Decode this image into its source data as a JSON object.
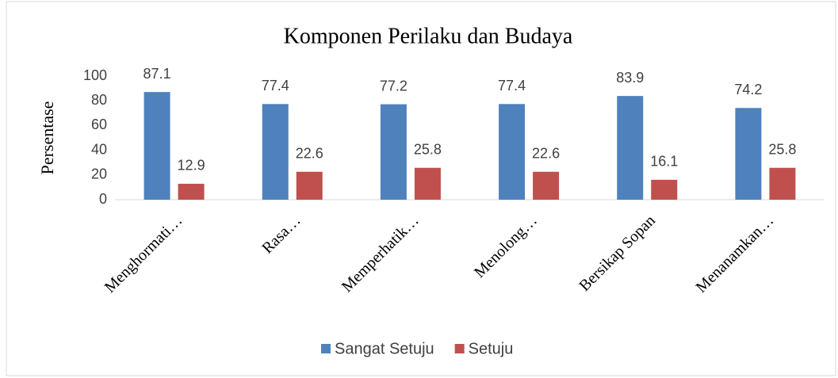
{
  "chart_data": {
    "type": "bar",
    "title": "Komponen Perilaku  dan Budaya",
    "y_label": "Persentase",
    "categories": [
      "Menghormati…",
      "Rasa…",
      "Memperhatik…",
      "Menolong…",
      "Bersikap Sopan",
      "Menanamkan…"
    ],
    "series": [
      {
        "name": "Sangat Setuju",
        "color": "#4f81bd",
        "values": [
          87.1,
          77.4,
          77.2,
          77.4,
          83.9,
          74.2
        ]
      },
      {
        "name": "Setuju",
        "color": "#c0504d",
        "values": [
          12.9,
          22.6,
          25.8,
          22.6,
          16.1,
          25.8
        ]
      }
    ],
    "ylim": [
      0,
      100
    ],
    "yticks": [
      0,
      20,
      40,
      60,
      80,
      100
    ],
    "grid": false,
    "legend": "bottom"
  }
}
